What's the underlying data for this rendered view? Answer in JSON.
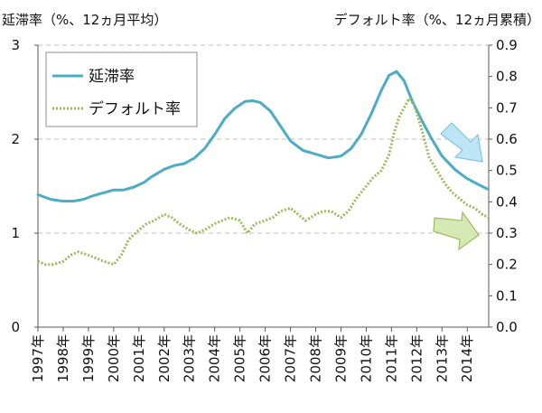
{
  "chart_data": {
    "type": "line",
    "left_axis_title": "延滞率（%、12ヵ月平均）",
    "right_axis_title": "デフォルト率（%、12ヵ月累積）",
    "left_ylim": [
      0,
      3
    ],
    "left_ticks": [
      "0",
      "1",
      "2",
      "3"
    ],
    "right_ylim": [
      0,
      0.9
    ],
    "right_ticks": [
      "0.0",
      "0.1",
      "0.2",
      "0.3",
      "0.4",
      "0.5",
      "0.6",
      "0.7",
      "0.8",
      "0.9"
    ],
    "x_labels": [
      "1997年",
      "1998年",
      "1999年",
      "2000年",
      "2001年",
      "2002年",
      "2003年",
      "2004年",
      "2005年",
      "2006年",
      "2007年",
      "2008年",
      "2009年",
      "2010年",
      "2011年",
      "2012年",
      "2013年",
      "2014年"
    ],
    "x_range": [
      1997,
      2014.85
    ],
    "grid": "horizontal-dashed",
    "legend_position": "top-left",
    "series": [
      {
        "name": "延滞率",
        "axis": "left",
        "color": "#4BACC6",
        "style": "solid",
        "x": [
          1997.0,
          1997.5,
          1998.0,
          1998.4,
          1998.8,
          1999.2,
          1999.6,
          2000.0,
          2000.4,
          2000.8,
          2001.2,
          2001.5,
          2002.0,
          2002.4,
          2002.8,
          2003.2,
          2003.6,
          2004.0,
          2004.4,
          2004.8,
          2005.2,
          2005.5,
          2005.8,
          2006.2,
          2006.6,
          2007.0,
          2007.5,
          2008.0,
          2008.5,
          2009.0,
          2009.4,
          2009.8,
          2010.2,
          2010.6,
          2010.9,
          2011.2,
          2011.5,
          2011.8,
          2012.2,
          2012.6,
          2013.0,
          2013.5,
          2014.0,
          2014.5,
          2014.8
        ],
        "values": [
          1.41,
          1.36,
          1.34,
          1.34,
          1.36,
          1.4,
          1.43,
          1.46,
          1.46,
          1.49,
          1.54,
          1.6,
          1.68,
          1.72,
          1.74,
          1.8,
          1.9,
          2.05,
          2.22,
          2.33,
          2.4,
          2.41,
          2.39,
          2.3,
          2.14,
          1.98,
          1.88,
          1.84,
          1.8,
          1.82,
          1.9,
          2.05,
          2.27,
          2.52,
          2.68,
          2.72,
          2.62,
          2.42,
          2.2,
          2.0,
          1.82,
          1.68,
          1.58,
          1.51,
          1.47
        ]
      },
      {
        "name": "デフォルト率",
        "axis": "right",
        "color": "#9BBB59",
        "style": "dotted",
        "x": [
          1997.0,
          1997.3,
          1997.6,
          1998.0,
          1998.3,
          1998.6,
          1999.0,
          1999.3,
          1999.6,
          2000.0,
          2000.3,
          2000.6,
          2001.0,
          2001.3,
          2001.6,
          2002.0,
          2002.3,
          2002.6,
          2003.0,
          2003.3,
          2003.6,
          2004.0,
          2004.3,
          2004.6,
          2005.0,
          2005.3,
          2005.6,
          2006.0,
          2006.3,
          2006.6,
          2007.0,
          2007.3,
          2007.6,
          2008.0,
          2008.3,
          2008.6,
          2009.0,
          2009.3,
          2009.6,
          2010.0,
          2010.3,
          2010.6,
          2010.9,
          2011.1,
          2011.3,
          2011.5,
          2011.7,
          2011.9,
          2012.2,
          2012.5,
          2012.8,
          2013.1,
          2013.4,
          2013.7,
          2014.0,
          2014.3,
          2014.6,
          2014.85
        ],
        "values": [
          0.21,
          0.2,
          0.2,
          0.21,
          0.23,
          0.24,
          0.23,
          0.22,
          0.21,
          0.2,
          0.23,
          0.28,
          0.31,
          0.33,
          0.34,
          0.36,
          0.35,
          0.33,
          0.31,
          0.3,
          0.31,
          0.33,
          0.34,
          0.35,
          0.34,
          0.3,
          0.33,
          0.34,
          0.35,
          0.37,
          0.38,
          0.36,
          0.34,
          0.36,
          0.37,
          0.37,
          0.35,
          0.37,
          0.41,
          0.45,
          0.48,
          0.5,
          0.55,
          0.62,
          0.67,
          0.7,
          0.73,
          0.71,
          0.63,
          0.54,
          0.5,
          0.46,
          0.43,
          0.41,
          0.39,
          0.38,
          0.36,
          0.35
        ]
      }
    ]
  },
  "colors": {
    "delinquency_line": "#4BACC6",
    "default_line": "#9BBB59",
    "arrow_down_fill": "#BFE4F6",
    "arrow_down_stroke": "#7FC6E6",
    "arrow_right_fill": "#D6E8B4",
    "arrow_right_stroke": "#9BBB59",
    "grid": "#bfbfbf"
  },
  "icons": [
    "down-right-arrow-icon",
    "right-arrow-icon"
  ]
}
